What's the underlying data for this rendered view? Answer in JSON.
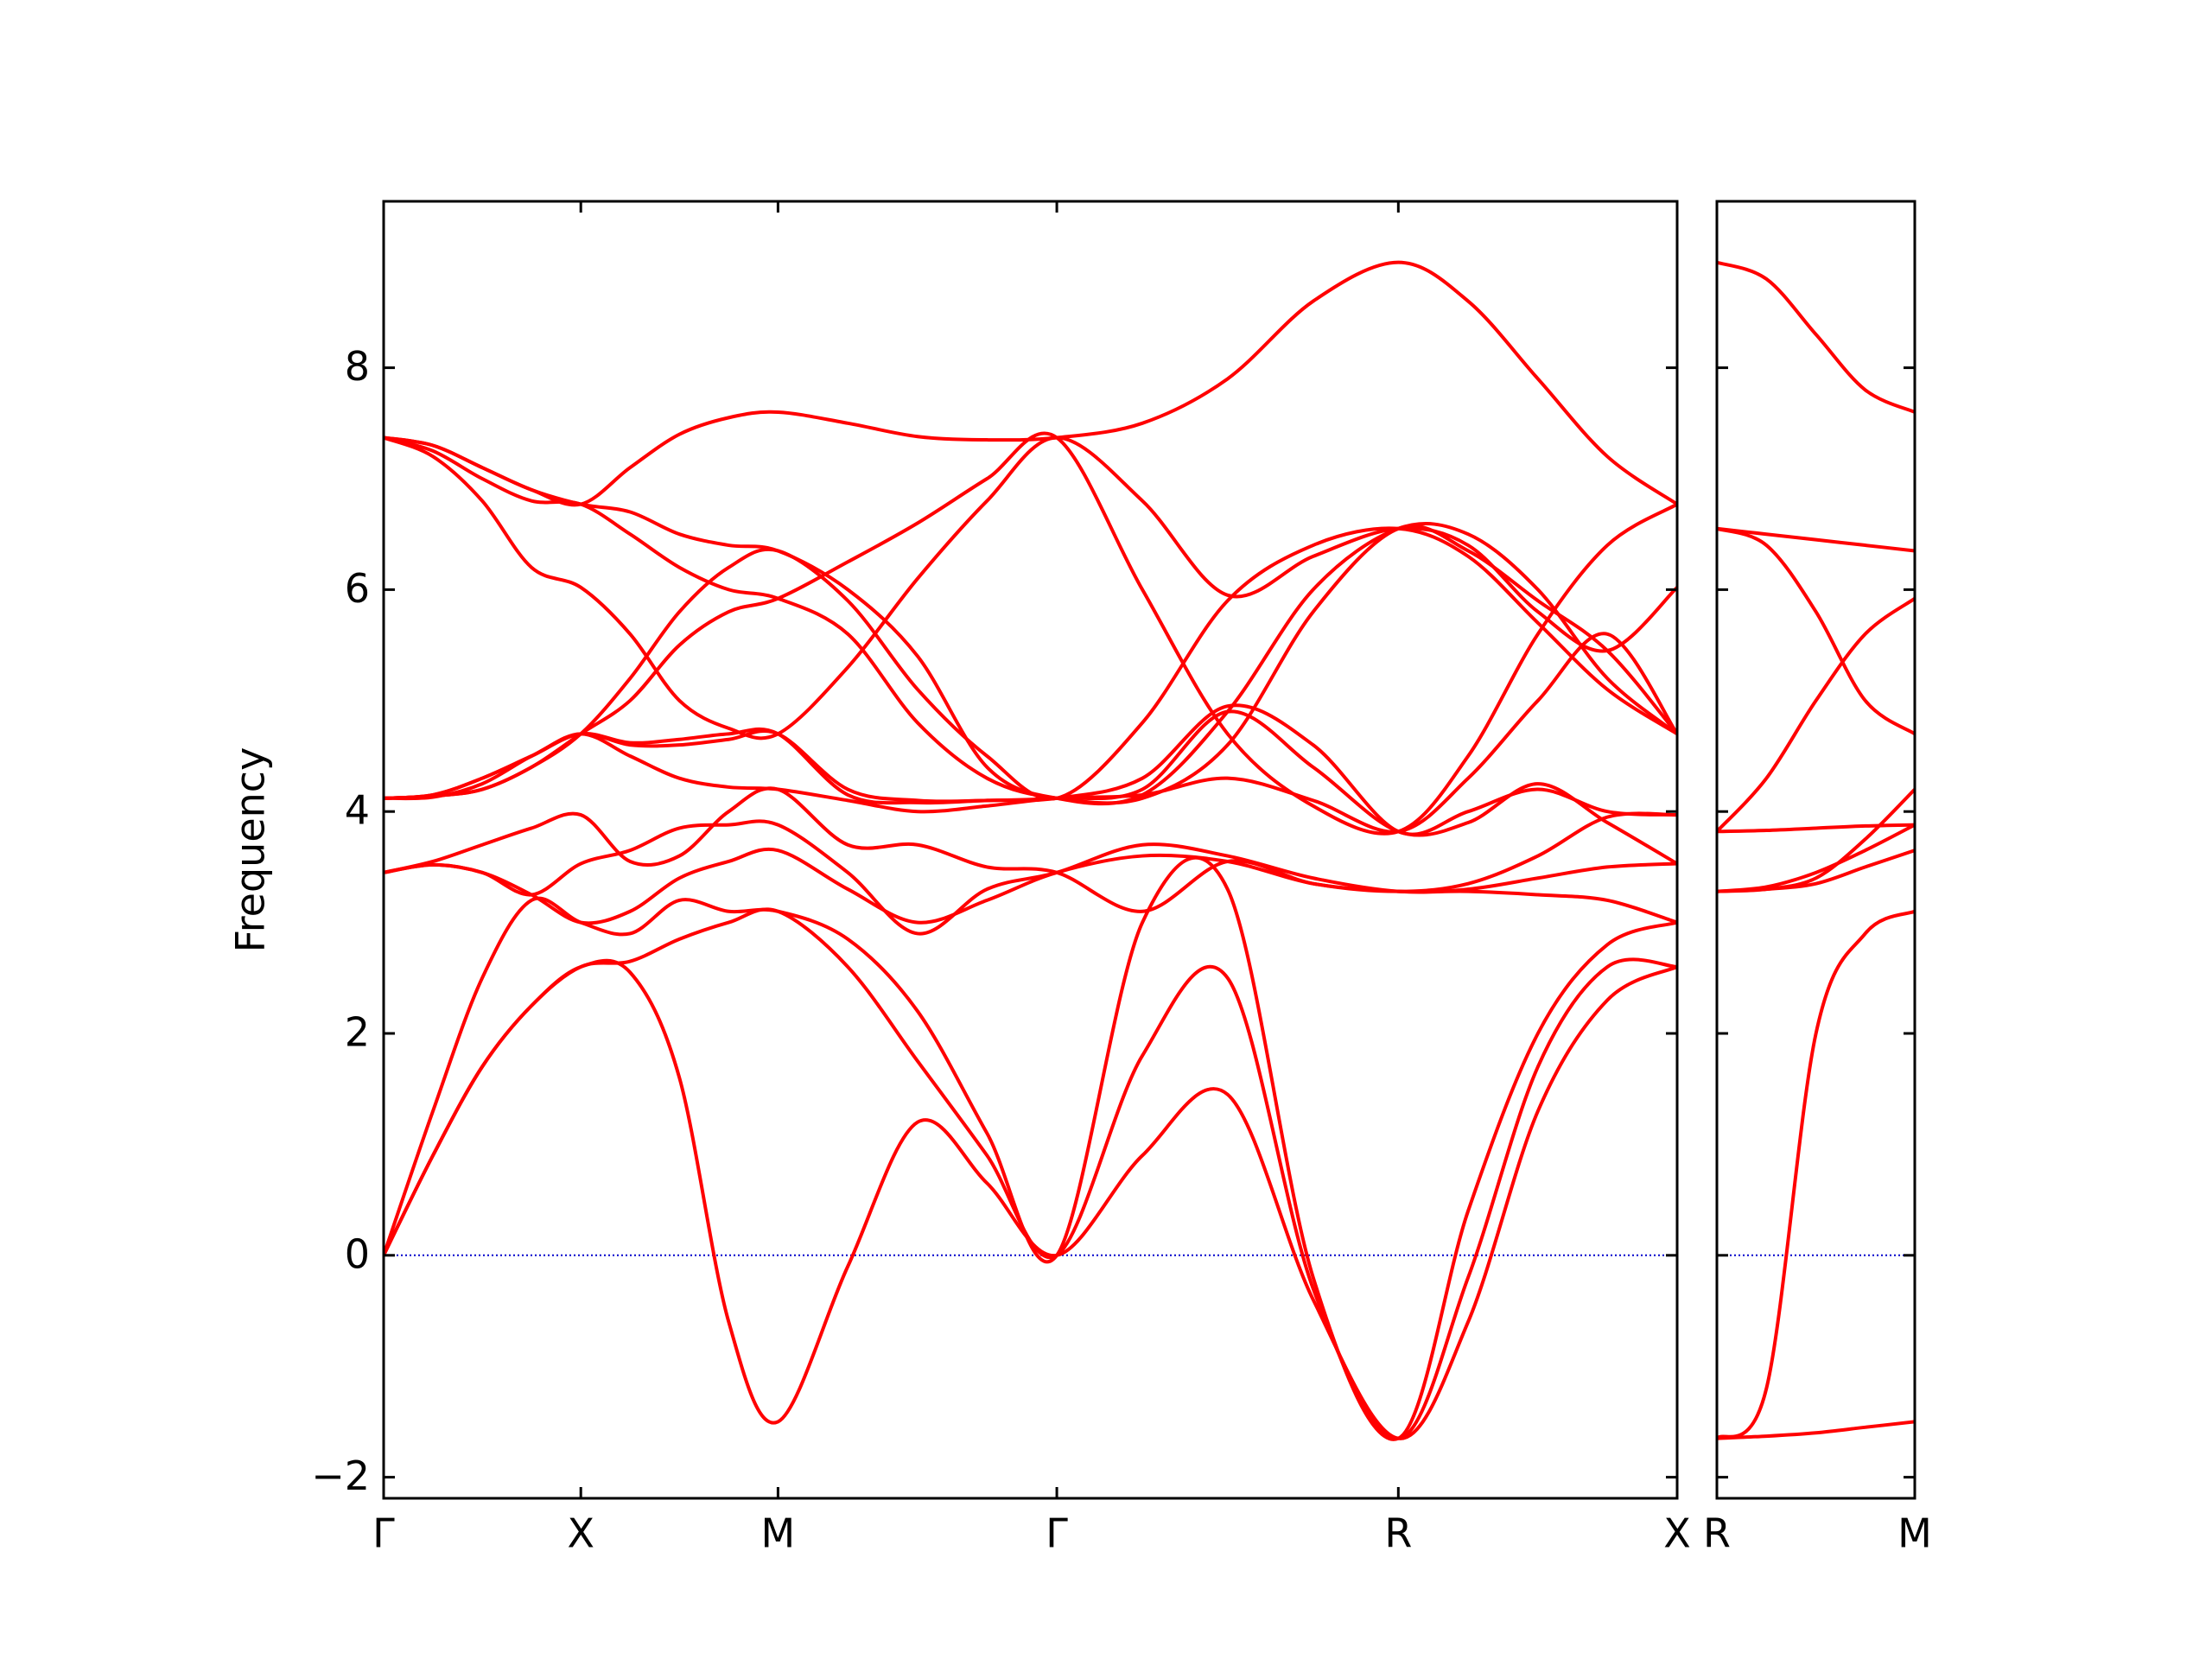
{
  "chart_data": [
    {
      "type": "line",
      "ylabel": "Frequency",
      "x": [
        0,
        0.125,
        0.25,
        0.375,
        0.5,
        0.625,
        0.75,
        0.875,
        1.0,
        1.177,
        1.354,
        1.53,
        1.707,
        1.924,
        2.14,
        2.357,
        2.573,
        2.75,
        2.927,
        3.103,
        3.28
      ],
      "xlim": [
        0,
        3.28
      ],
      "xticks": [
        {
          "value": 0,
          "label": "Γ"
        },
        {
          "value": 0.5,
          "label": "X"
        },
        {
          "value": 1.0,
          "label": "M"
        },
        {
          "value": 1.707,
          "label": "Γ"
        },
        {
          "value": 2.573,
          "label": "R"
        },
        {
          "value": 3.28,
          "label": "X"
        }
      ],
      "ylim": [
        -2.19,
        9.5
      ],
      "yticks": [
        {
          "value": -2,
          "label": "−2"
        },
        0,
        2,
        4,
        6,
        8
      ],
      "show_ytick_labels": true,
      "zero_line": {
        "y": 0,
        "color": "#0000cc"
      },
      "series": [
        {
          "color": "#ff0000",
          "values": [
            0,
            0.9,
            1.7,
            2.25,
            2.6,
            2.55,
            1.6,
            -0.6,
            -1.5,
            -0.1,
            1.2,
            0.65,
            0,
            0.9,
            1.45,
            -0.4,
            -1.65,
            -0.6,
            1.3,
            2.3,
            2.6
          ]
        },
        {
          "color": "#ff0000",
          "values": [
            0,
            0.9,
            1.7,
            2.25,
            2.6,
            2.65,
            2.85,
            3.0,
            3.1,
            2.6,
            1.75,
            0.9,
            0,
            1.8,
            2.5,
            -0.3,
            -1.65,
            -0.2,
            1.7,
            2.6,
            2.6
          ]
        },
        {
          "color": "#ff0000",
          "values": [
            0,
            1.3,
            2.5,
            3.2,
            3.0,
            2.9,
            3.2,
            3.1,
            3.1,
            2.85,
            2.2,
            1.1,
            0,
            3.0,
            3.3,
            -0.2,
            -1.65,
            0.4,
            2.0,
            2.8,
            3.0
          ]
        },
        {
          "color": "#ff0000",
          "values": [
            3.45,
            3.52,
            3.45,
            3.25,
            3.0,
            3.1,
            3.4,
            3.55,
            3.65,
            3.3,
            3.0,
            3.2,
            3.45,
            3.6,
            3.55,
            3.35,
            3.28,
            3.28,
            3.25,
            3.2,
            3.0
          ]
        },
        {
          "color": "#ff0000",
          "values": [
            3.45,
            3.52,
            3.45,
            3.25,
            3.53,
            3.65,
            3.85,
            3.88,
            3.88,
            3.45,
            2.9,
            3.3,
            3.45,
            3.7,
            3.6,
            3.4,
            3.28,
            3.3,
            3.4,
            3.5,
            3.53
          ]
        },
        {
          "color": "#ff0000",
          "values": [
            3.45,
            3.55,
            3.7,
            3.85,
            3.97,
            3.55,
            3.6,
            4.0,
            4.2,
            3.7,
            3.7,
            3.5,
            3.45,
            3.1,
            3.55,
            3.35,
            3.28,
            3.35,
            3.6,
            3.95,
            3.97
          ]
        },
        {
          "color": "#ff0000",
          "values": [
            4.12,
            4.13,
            4.25,
            4.5,
            4.7,
            4.6,
            4.6,
            4.65,
            4.7,
            4.2,
            4.1,
            4.1,
            4.12,
            4.2,
            4.9,
            4.4,
            3.82,
            3.9,
            4.25,
            3.9,
            3.53
          ]
        },
        {
          "color": "#ff0000",
          "values": [
            4.12,
            4.15,
            4.3,
            4.5,
            4.7,
            4.62,
            4.65,
            4.7,
            4.7,
            4.15,
            4.08,
            4.1,
            4.12,
            4.3,
            4.95,
            4.6,
            3.82,
            4.0,
            4.2,
            4.0,
            3.97
          ]
        },
        {
          "color": "#ff0000",
          "values": [
            4.12,
            4.15,
            4.3,
            4.5,
            4.7,
            4.5,
            4.3,
            4.22,
            4.2,
            4.1,
            4.0,
            4.05,
            4.12,
            4.15,
            4.3,
            4.1,
            3.82,
            4.3,
            5.0,
            5.6,
            4.7
          ]
        },
        {
          "color": "#ff0000",
          "values": [
            4.12,
            4.14,
            4.2,
            4.4,
            4.7,
            5.2,
            5.8,
            6.2,
            6.35,
            5.9,
            5.1,
            4.5,
            4.12,
            4.8,
            5.9,
            6.4,
            6.55,
            6.3,
            5.7,
            5.1,
            4.7
          ]
        },
        {
          "color": "#ff0000",
          "values": [
            4.12,
            4.14,
            4.2,
            4.4,
            4.7,
            5.0,
            5.5,
            5.8,
            5.92,
            6.25,
            6.6,
            7.0,
            7.37,
            6.0,
            4.7,
            4.05,
            3.82,
            4.5,
            5.6,
            6.4,
            6.77
          ]
        },
        {
          "color": "#ff0000",
          "values": [
            7.37,
            7.2,
            6.8,
            6.2,
            6.02,
            5.6,
            5.0,
            4.75,
            4.7,
            5.3,
            6.1,
            6.8,
            7.37,
            6.8,
            5.95,
            6.3,
            6.55,
            6.4,
            5.8,
            5.45,
            6.02
          ]
        },
        {
          "color": "#ff0000",
          "values": [
            7.37,
            7.25,
            7.0,
            6.8,
            6.77,
            6.5,
            6.2,
            6.0,
            5.92,
            5.6,
            4.8,
            4.3,
            4.12,
            4.12,
            4.6,
            5.8,
            6.55,
            6.35,
            5.9,
            5.45,
            4.7
          ]
        },
        {
          "color": "#ff0000",
          "values": [
            7.37,
            7.3,
            7.1,
            6.9,
            6.77,
            6.7,
            6.5,
            6.4,
            6.35,
            6.0,
            5.4,
            4.4,
            4.12,
            4.15,
            4.9,
            6.0,
            6.55,
            6.5,
            6.0,
            5.2,
            4.7
          ]
        },
        {
          "color": "#ff0000",
          "values": [
            7.37,
            7.3,
            7.1,
            6.9,
            6.77,
            7.1,
            7.4,
            7.55,
            7.6,
            7.5,
            7.38,
            7.35,
            7.37,
            7.5,
            7.9,
            8.6,
            8.95,
            8.6,
            7.9,
            7.2,
            6.77
          ]
        }
      ]
    },
    {
      "type": "line",
      "x": [
        0,
        0.177,
        0.354,
        0.53,
        0.707
      ],
      "xlim": [
        0,
        0.707
      ],
      "xticks": [
        {
          "value": 0,
          "label": "R"
        },
        {
          "value": 0.707,
          "label": "M"
        }
      ],
      "ylim": [
        -2.19,
        9.5
      ],
      "yticks": [
        -2,
        0,
        2,
        4,
        6,
        8
      ],
      "show_ytick_labels": false,
      "zero_line": {
        "y": 0,
        "color": "#0000cc"
      },
      "series": [
        {
          "color": "#ff0000",
          "values": [
            -1.65,
            -1.63,
            -1.6,
            -1.55,
            -1.5
          ]
        },
        {
          "color": "#ff0000",
          "values": [
            -1.65,
            -1.2,
            2.0,
            2.9,
            3.1
          ]
        },
        {
          "color": "#ff0000",
          "values": [
            3.28,
            3.3,
            3.35,
            3.5,
            3.65
          ]
        },
        {
          "color": "#ff0000",
          "values": [
            3.28,
            3.32,
            3.45,
            3.65,
            3.88
          ]
        },
        {
          "color": "#ff0000",
          "values": [
            3.28,
            3.3,
            3.4,
            3.75,
            4.2
          ]
        },
        {
          "color": "#ff0000",
          "values": [
            3.82,
            3.83,
            3.85,
            3.87,
            3.88
          ]
        },
        {
          "color": "#ff0000",
          "values": [
            3.82,
            4.3,
            5.0,
            5.6,
            5.92
          ]
        },
        {
          "color": "#ff0000",
          "values": [
            6.55,
            6.4,
            5.8,
            5.0,
            4.7
          ]
        },
        {
          "color": "#ff0000",
          "values": [
            6.55,
            6.5,
            6.45,
            6.4,
            6.35
          ]
        },
        {
          "color": "#ff0000",
          "values": [
            8.95,
            8.8,
            8.3,
            7.8,
            7.6
          ]
        }
      ]
    }
  ]
}
